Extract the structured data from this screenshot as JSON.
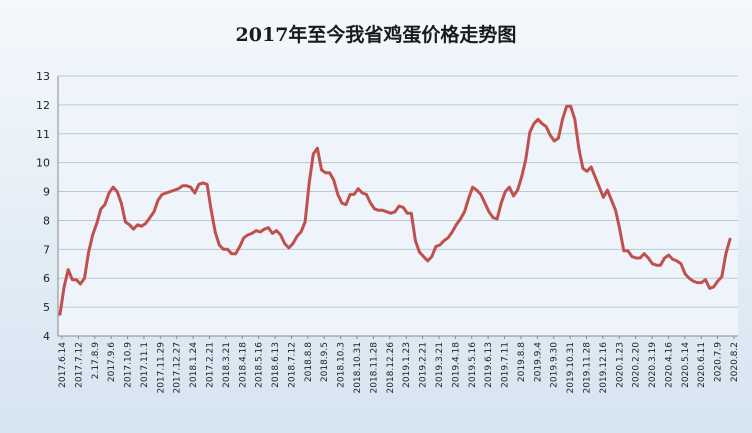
{
  "chart_data": {
    "type": "line",
    "title": "2017年至今我省鸡蛋价格走势图",
    "xlabel": "",
    "ylabel": "",
    "ylim": [
      4,
      13
    ],
    "yticks": [
      4,
      5,
      6,
      7,
      8,
      9,
      10,
      11,
      12,
      13
    ],
    "grid": true,
    "legend": "none",
    "line_color": "#c0504d",
    "x_tick_labels": [
      "2017.6.14",
      "2017.7.12",
      "2.17.8.9",
      "2017.9.6",
      "2017.10.9",
      "2017.11.1",
      "2017.11.29",
      "2017.12.27",
      "2018.1.24",
      "2017.2.21",
      "2018.3.21",
      "2018.4.18",
      "2018.5.16",
      "2018.6.13",
      "2018.7.12",
      "2018.8.8",
      "2018.9.5",
      "2018.10.3",
      "2018.10.31",
      "2018.11.28",
      "2018.12.26",
      "2019.1.23",
      "2019.2.21",
      "2019.3.21",
      "2019.4.18",
      "2019.5.16",
      "2019.6.13",
      "2019.7.11",
      "2019.8.8",
      "2019.9.4",
      "2019.9.30",
      "2019.10.31",
      "2019.11.28",
      "2019.12.16",
      "2020.1.23",
      "2020.2.20",
      "2020.3.19",
      "2020.4.16",
      "2020.5.14",
      "2020.6.11",
      "2020.7.9",
      "2020.8.2"
    ],
    "values": [
      4.75,
      5.7,
      6.3,
      5.95,
      5.95,
      5.8,
      6.0,
      6.9,
      7.5,
      7.9,
      8.4,
      8.55,
      8.95,
      9.15,
      9.0,
      8.6,
      7.95,
      7.85,
      7.7,
      7.85,
      7.8,
      7.9,
      8.1,
      8.3,
      8.7,
      8.9,
      8.95,
      9.0,
      9.05,
      9.1,
      9.2,
      9.2,
      9.15,
      8.95,
      9.25,
      9.3,
      9.25,
      8.35,
      7.6,
      7.15,
      7.0,
      7.0,
      6.85,
      6.85,
      7.1,
      7.4,
      7.5,
      7.55,
      7.65,
      7.6,
      7.7,
      7.75,
      7.55,
      7.65,
      7.5,
      7.2,
      7.05,
      7.2,
      7.45,
      7.6,
      7.95,
      9.3,
      10.3,
      10.5,
      9.75,
      9.65,
      9.65,
      9.4,
      8.9,
      8.6,
      8.55,
      8.9,
      8.9,
      9.1,
      8.95,
      8.9,
      8.6,
      8.4,
      8.35,
      8.35,
      8.3,
      8.25,
      8.3,
      8.5,
      8.45,
      8.25,
      8.25,
      7.3,
      6.9,
      6.75,
      6.6,
      6.75,
      7.1,
      7.15,
      7.3,
      7.4,
      7.6,
      7.85,
      8.05,
      8.3,
      8.75,
      9.15,
      9.05,
      8.9,
      8.6,
      8.3,
      8.1,
      8.05,
      8.6,
      9.0,
      9.15,
      8.85,
      9.05,
      9.5,
      10.1,
      11.05,
      11.35,
      11.5,
      11.35,
      11.25,
      10.95,
      10.75,
      10.85,
      11.5,
      11.95,
      11.95,
      11.5,
      10.5,
      9.8,
      9.7,
      9.85,
      9.5,
      9.15,
      8.8,
      9.05,
      8.7,
      8.35,
      7.7,
      6.95,
      6.95,
      6.75,
      6.7,
      6.7,
      6.85,
      6.7,
      6.5,
      6.45,
      6.45,
      6.7,
      6.8,
      6.65,
      6.6,
      6.5,
      6.15,
      6.0,
      5.9,
      5.85,
      5.85,
      5.95,
      5.65,
      5.7,
      5.9,
      6.05,
      6.85,
      7.35
    ]
  }
}
